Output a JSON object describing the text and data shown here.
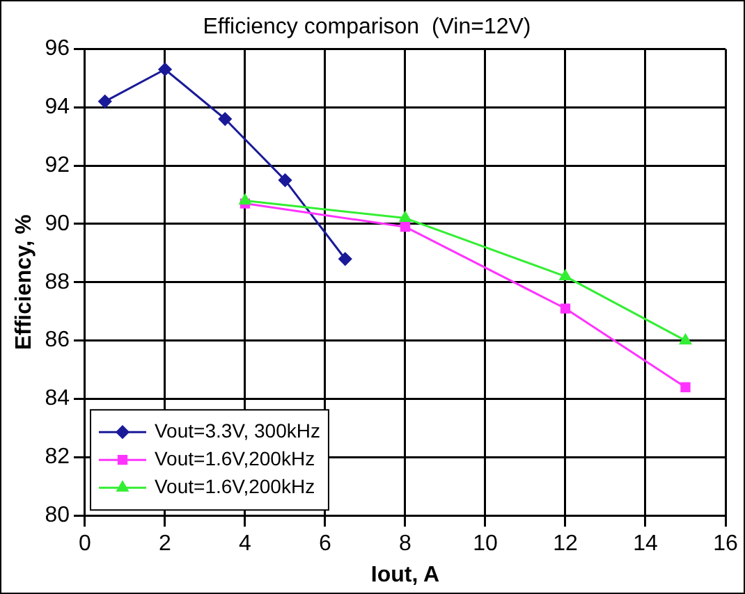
{
  "chart_data": {
    "type": "line",
    "title": "Efficiency comparison  (Vin=12V)",
    "xlabel": "Iout, A",
    "ylabel": "Efficiency, %",
    "xlim": [
      0,
      16
    ],
    "xticks": [
      0,
      2,
      4,
      6,
      8,
      10,
      12,
      14,
      16
    ],
    "ylim": [
      80,
      96
    ],
    "yticks": [
      80,
      82,
      84,
      86,
      88,
      90,
      92,
      94,
      96
    ],
    "grid": true,
    "legend": "bottom left",
    "line_style": "solid",
    "series": [
      {
        "name": "Vout=3.3V, 300kHz",
        "color": "#1a1a99",
        "marker": "diamond",
        "x": [
          0.5,
          2,
          3.5,
          5,
          6.5
        ],
        "values": [
          94.2,
          95.3,
          93.6,
          91.5,
          88.8
        ]
      },
      {
        "name": "Vout=1.6V,200kHz",
        "color": "#ff33ff",
        "marker": "square",
        "x": [
          4,
          8,
          12,
          15
        ],
        "values": [
          90.7,
          89.9,
          87.1,
          84.4
        ]
      },
      {
        "name": "Vout=1.6V,200kHz",
        "color": "#33ee33",
        "marker": "triangle",
        "x": [
          4,
          8,
          12,
          15
        ],
        "values": [
          90.8,
          90.2,
          88.2,
          86.0
        ]
      }
    ]
  }
}
